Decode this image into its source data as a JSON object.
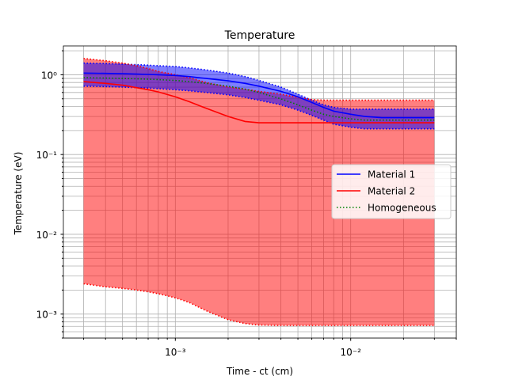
{
  "chart_data": {
    "type": "line",
    "title": "Temperature",
    "xlabel": "Time - ct (cm)",
    "ylabel": "Temperature (eV)",
    "x_scale": "log",
    "y_scale": "log",
    "xlim": [
      0.00023,
      0.04
    ],
    "ylim": [
      0.0005,
      2.3
    ],
    "grid": true,
    "x_ticks": [
      {
        "value": 0.001,
        "label": "10⁻³"
      },
      {
        "value": 0.01,
        "label": "10⁻²"
      }
    ],
    "y_ticks": [
      {
        "value": 0.001,
        "label": "10⁻³"
      },
      {
        "value": 0.01,
        "label": "10⁻²"
      },
      {
        "value": 0.1,
        "label": "10⁻¹"
      },
      {
        "value": 1,
        "label": "10⁰"
      }
    ],
    "legend_position": "center-right",
    "x": [
      0.0003,
      0.0004,
      0.0005,
      0.0006,
      0.0007,
      0.0008,
      0.001,
      0.0012,
      0.0015,
      0.002,
      0.0025,
      0.003,
      0.004,
      0.005,
      0.006,
      0.007,
      0.008,
      0.01,
      0.012,
      0.015,
      0.02,
      0.025,
      0.03
    ],
    "series": [
      {
        "name": "Material 1",
        "color": "#0000ff",
        "style": "solid",
        "values": [
          1.05,
          1.04,
          1.03,
          1.02,
          1.01,
          1.0,
          0.98,
          0.95,
          0.9,
          0.84,
          0.78,
          0.72,
          0.62,
          0.53,
          0.45,
          0.39,
          0.35,
          0.32,
          0.3,
          0.29,
          0.29,
          0.29,
          0.29
        ],
        "band_upper": [
          1.4,
          1.38,
          1.36,
          1.34,
          1.32,
          1.3,
          1.27,
          1.22,
          1.15,
          1.05,
          0.95,
          0.85,
          0.7,
          0.57,
          0.48,
          0.42,
          0.39,
          0.37,
          0.37,
          0.37,
          0.37,
          0.37,
          0.37
        ],
        "band_lower": [
          0.72,
          0.71,
          0.7,
          0.69,
          0.68,
          0.67,
          0.65,
          0.63,
          0.6,
          0.56,
          0.52,
          0.48,
          0.42,
          0.36,
          0.31,
          0.27,
          0.24,
          0.22,
          0.21,
          0.21,
          0.21,
          0.21,
          0.21
        ],
        "band_color": "#0000ff"
      },
      {
        "name": "Material 2",
        "color": "#ff0000",
        "style": "solid",
        "values": [
          0.82,
          0.78,
          0.74,
          0.69,
          0.65,
          0.61,
          0.53,
          0.46,
          0.38,
          0.3,
          0.26,
          0.25,
          0.25,
          0.25,
          0.25,
          0.25,
          0.25,
          0.25,
          0.25,
          0.25,
          0.25,
          0.25,
          0.25
        ],
        "band_upper": [
          1.6,
          1.5,
          1.4,
          1.3,
          1.2,
          1.1,
          1.0,
          0.92,
          0.8,
          0.7,
          0.66,
          0.62,
          0.57,
          0.52,
          0.49,
          0.48,
          0.48,
          0.48,
          0.48,
          0.48,
          0.48,
          0.48,
          0.48
        ],
        "band_lower": [
          0.0024,
          0.0022,
          0.0021,
          0.002,
          0.0019,
          0.0018,
          0.0016,
          0.0014,
          0.0011,
          0.00085,
          0.00076,
          0.00073,
          0.00072,
          0.00072,
          0.00072,
          0.00072,
          0.00072,
          0.00072,
          0.00072,
          0.00072,
          0.00072,
          0.00072,
          0.00072
        ],
        "band_color": "#ff0000"
      },
      {
        "name": "Homogeneous",
        "color": "#008000",
        "style": "dotted",
        "values": [
          0.92,
          0.91,
          0.9,
          0.89,
          0.88,
          0.87,
          0.85,
          0.82,
          0.78,
          0.72,
          0.66,
          0.6,
          0.5,
          0.42,
          0.36,
          0.32,
          0.3,
          0.28,
          0.27,
          0.27,
          0.27,
          0.27,
          0.27
        ]
      }
    ]
  }
}
